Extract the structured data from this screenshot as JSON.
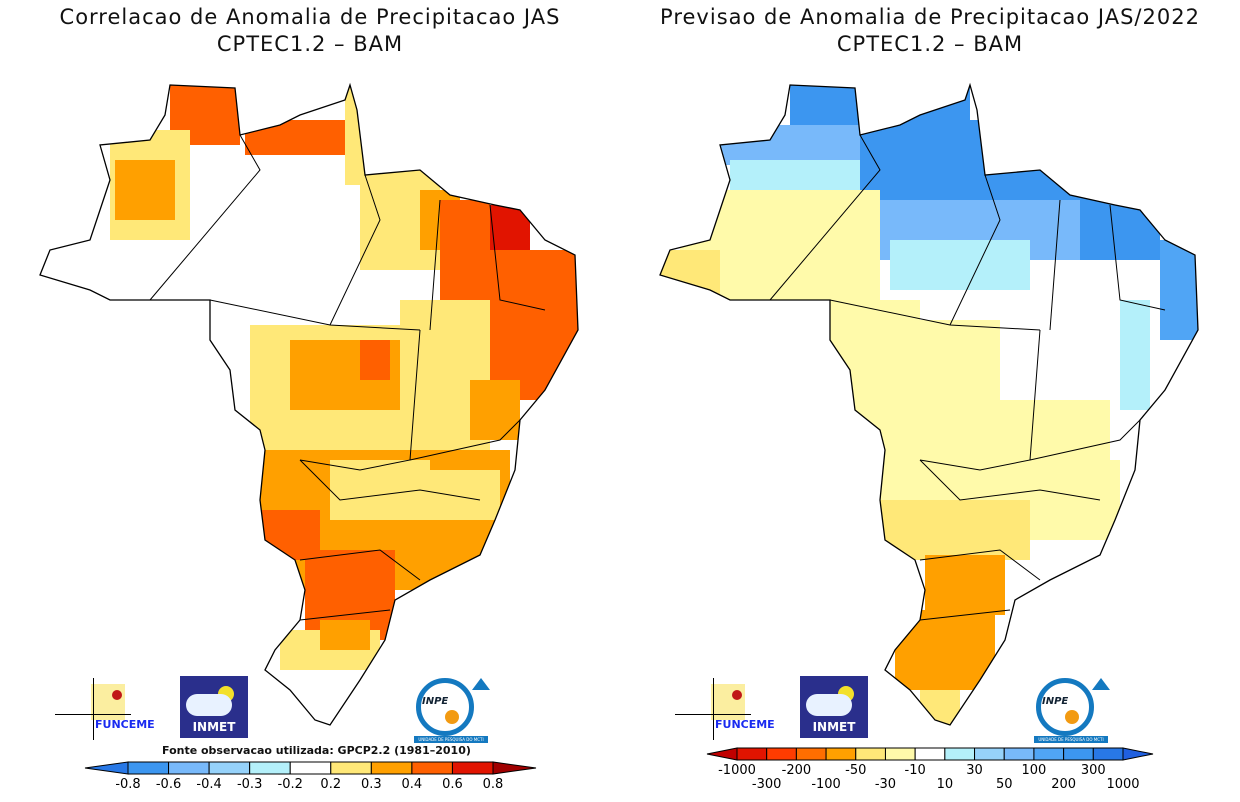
{
  "left_panel": {
    "title_line1": "Correlacao de Anomalia de Precipitacao JAS",
    "title_line2": "CPTEC1.2 – BAM",
    "source_note": "Fonte observacao utilizada: GPCP2.2 (1981–2010)",
    "colorbar": {
      "labels": [
        "-0.8",
        "-0.6",
        "-0.4",
        "-0.3",
        "-0.2",
        "0.2",
        "0.3",
        "0.4",
        "0.6",
        "0.8"
      ],
      "under_color": "#2878e6",
      "colors": [
        "#3c96f0",
        "#78b9fa",
        "#96d2fa",
        "#b4f0fa",
        "#ffffff",
        "#ffe878",
        "#ffa000",
        "#ff6000",
        "#e11400"
      ],
      "over_color": "#a00000"
    }
  },
  "right_panel": {
    "title_line1": "Previsao de Anomalia de Precipitacao JAS/2022",
    "title_line2": "CPTEC1.2 – BAM",
    "colorbar": {
      "labels": [
        "-1000",
        "-300",
        "-200",
        "-100",
        "-50",
        "-30",
        "-10",
        "10",
        "30",
        "50",
        "100",
        "200",
        "300",
        "1000"
      ],
      "under_color": "#c00000",
      "colors": [
        "#e11400",
        "#ff3c00",
        "#ff6e00",
        "#ffa000",
        "#ffe878",
        "#fffaaa",
        "#ffffff",
        "#b4f0fa",
        "#96d2fa",
        "#78b9fa",
        "#50a5f5",
        "#3c96f0",
        "#2878e6"
      ],
      "over_color": "#2060e0"
    }
  },
  "logos": {
    "funceme": "FUNCEME",
    "inmet": "INMET",
    "inpe": "INPE",
    "inpe_sub": "UNIDADE DE PESQUISA DO MCTI"
  }
}
